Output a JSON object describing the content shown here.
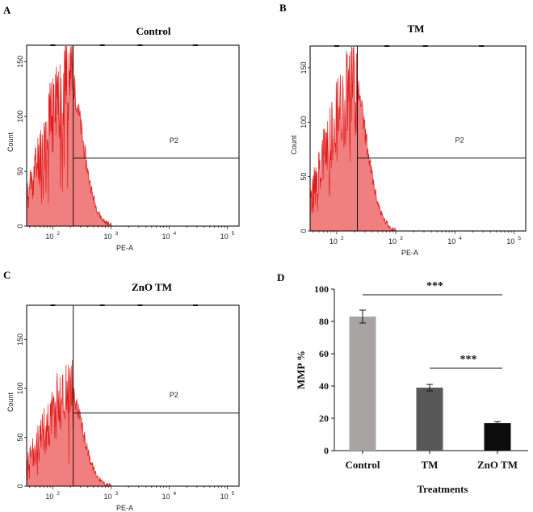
{
  "chart_data": [
    {
      "panel": "A",
      "type": "area",
      "title": "Control",
      "xlabel": "PE-A",
      "ylabel": "Count",
      "x_ticks": [
        "10",
        "10",
        "10",
        "10"
      ],
      "x_tick_exponents": [
        "2",
        "3",
        "4",
        "5"
      ],
      "y_ticks": [
        "0",
        "50",
        "100",
        "150"
      ],
      "ylim": [
        0,
        165
      ],
      "gate": {
        "label": "P2",
        "level": 62
      },
      "seed": 11,
      "shape_scale": 1.0
    },
    {
      "panel": "B",
      "type": "area",
      "title": "TM",
      "xlabel": "PE-A",
      "ylabel": "Count",
      "x_ticks": [
        "10",
        "10",
        "10",
        "10"
      ],
      "x_tick_exponents": [
        "2",
        "3",
        "4",
        "5"
      ],
      "y_ticks": [
        "0",
        "50",
        "100",
        "150"
      ],
      "ylim": [
        0,
        170
      ],
      "gate": {
        "label": "P2",
        "level": 67
      },
      "seed": 23,
      "shape_scale": 1.0
    },
    {
      "panel": "C",
      "type": "area",
      "title": "ZnO TM",
      "xlabel": "PE-A",
      "ylabel": "Count",
      "x_ticks": [
        "10",
        "10",
        "10",
        "10"
      ],
      "x_tick_exponents": [
        "2",
        "3",
        "4",
        "5"
      ],
      "y_ticks": [
        "0",
        "50",
        "100",
        "150"
      ],
      "ylim": [
        0,
        185
      ],
      "gate": {
        "label": "P2",
        "level": 75
      },
      "seed": 37,
      "shape_scale": 0.72
    },
    {
      "panel": "D",
      "type": "bar",
      "categories": [
        "Control",
        "TM",
        "ZnO TM"
      ],
      "values": [
        83,
        39,
        17
      ],
      "errors": [
        4,
        2,
        1
      ],
      "colors": [
        "#a9a4a4",
        "#585858",
        "#0c0c0c"
      ],
      "xlabel": "Treatments",
      "ylabel": "MMP %",
      "ylim": [
        0,
        100
      ],
      "y_ticks": [
        "0",
        "20",
        "40",
        "60",
        "80",
        "100"
      ],
      "significance": [
        {
          "from": 0,
          "to": 2,
          "label": "***"
        },
        {
          "from": 1,
          "to": 2,
          "label": "***"
        }
      ]
    }
  ],
  "colors": {
    "histogram_fill": "#f07f7f",
    "histogram_line": "#e21b1b",
    "frame": "#111111"
  }
}
